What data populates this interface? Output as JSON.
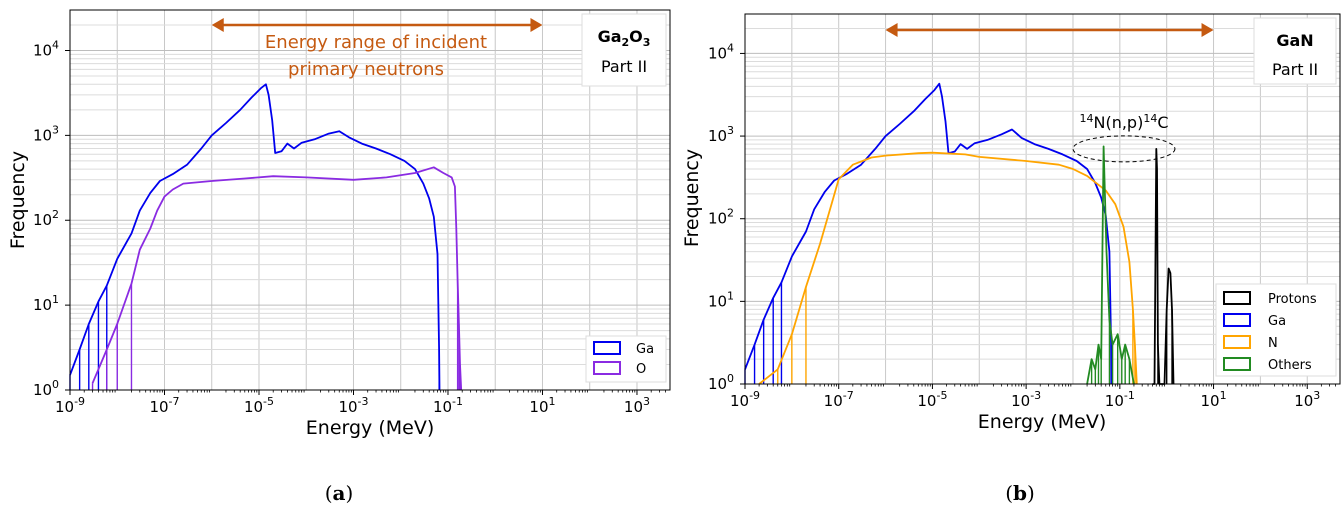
{
  "chart_data": [
    {
      "id": "a",
      "type": "line",
      "xlabel": "Energy (MeV)",
      "ylabel": "Frequency",
      "xscale": "log",
      "yscale": "log",
      "xlim": [
        1e-09,
        5000
      ],
      "ylim": [
        1,
        30000
      ],
      "grid": true,
      "xticks": [
        1e-09,
        1e-07,
        1e-05,
        0.001,
        0.1,
        10,
        1000
      ],
      "xtick_exps": [
        "-9",
        "-7",
        "-5",
        "-3",
        "-1",
        "1",
        "3"
      ],
      "yticks": [
        1,
        10,
        100,
        1000,
        10000
      ],
      "ytick_exps": [
        "0",
        "1",
        "2",
        "3",
        "4"
      ],
      "caption": "(a)",
      "caption_letter": "a",
      "material_base": "Ga",
      "material_sub1": "2",
      "material_mid": "O",
      "material_sub2": "3",
      "part": "Part II",
      "range_annotation": {
        "x": [
          1e-06,
          10
        ],
        "line1": "Energy range of incident",
        "line2": "primary neutrons",
        "color": "#c55a11"
      },
      "legend": {
        "placement": "lower-right",
        "entries": [
          "Ga",
          "O"
        ]
      },
      "series": [
        {
          "name": "Ga",
          "color": "#0000ee",
          "points": [
            [
              1e-09,
              1.5
            ],
            [
              1.6e-09,
              3
            ],
            [
              2.5e-09,
              6
            ],
            [
              4e-09,
              11
            ],
            [
              6e-09,
              17
            ],
            [
              1e-08,
              35
            ],
            [
              2e-08,
              70
            ],
            [
              3e-08,
              130
            ],
            [
              5e-08,
              210
            ],
            [
              8e-08,
              290
            ],
            [
              1.5e-07,
              350
            ],
            [
              3e-07,
              450
            ],
            [
              6e-07,
              700
            ],
            [
              1e-06,
              1000
            ],
            [
              2e-06,
              1400
            ],
            [
              4e-06,
              2000
            ],
            [
              7e-06,
              2800
            ],
            [
              1.1e-05,
              3600
            ],
            [
              1.4e-05,
              4000
            ],
            [
              1.6e-05,
              3000
            ],
            [
              1.9e-05,
              1500
            ],
            [
              2.2e-05,
              620
            ],
            [
              3e-05,
              650
            ],
            [
              4e-05,
              800
            ],
            [
              5.5e-05,
              700
            ],
            [
              8e-05,
              820
            ],
            [
              0.00015,
              900
            ],
            [
              0.0003,
              1050
            ],
            [
              0.0005,
              1120
            ],
            [
              0.0008,
              950
            ],
            [
              0.0015,
              800
            ],
            [
              0.003,
              700
            ],
            [
              0.006,
              600
            ],
            [
              0.012,
              500
            ],
            [
              0.02,
              400
            ],
            [
              0.03,
              270
            ],
            [
              0.04,
              180
            ],
            [
              0.05,
              110
            ],
            [
              0.06,
              40
            ],
            [
              0.065,
              3
            ],
            [
              0.066,
              1
            ]
          ]
        },
        {
          "name": "O",
          "color": "#8a2be2",
          "points": [
            [
              3e-09,
              1.2
            ],
            [
              6e-09,
              3
            ],
            [
              1e-08,
              6
            ],
            [
              2e-08,
              18
            ],
            [
              3e-08,
              45
            ],
            [
              5e-08,
              80
            ],
            [
              7e-08,
              130
            ],
            [
              1e-07,
              190
            ],
            [
              1.5e-07,
              230
            ],
            [
              2.5e-07,
              270
            ],
            [
              1e-06,
              290
            ],
            [
              5e-06,
              310
            ],
            [
              2e-05,
              330
            ],
            [
              0.0001,
              320
            ],
            [
              0.001,
              300
            ],
            [
              0.005,
              320
            ],
            [
              0.02,
              360
            ],
            [
              0.05,
              420
            ],
            [
              0.08,
              360
            ],
            [
              0.12,
              320
            ],
            [
              0.14,
              250
            ],
            [
              0.15,
              80
            ],
            [
              0.16,
              20
            ],
            [
              0.17,
              6
            ],
            [
              0.18,
              2
            ],
            [
              0.19,
              1
            ]
          ]
        }
      ]
    },
    {
      "id": "b",
      "type": "line",
      "xlabel": "Energy (MeV)",
      "ylabel": "Frequency",
      "xscale": "log",
      "yscale": "log",
      "xlim": [
        1e-09,
        5000
      ],
      "ylim": [
        1,
        30000
      ],
      "grid": true,
      "xticks": [
        1e-09,
        1e-07,
        1e-05,
        0.001,
        0.1,
        10,
        1000
      ],
      "xtick_exps": [
        "-9",
        "-7",
        "-5",
        "-3",
        "-1",
        "1",
        "3"
      ],
      "yticks": [
        1,
        10,
        100,
        1000,
        10000
      ],
      "ytick_exps": [
        "0",
        "1",
        "2",
        "3",
        "4"
      ],
      "caption": "(b)",
      "caption_letter": "b",
      "material": "GaN",
      "part": "Part II",
      "range_annotation": {
        "x": [
          1e-06,
          10
        ],
        "color": "#c55a11"
      },
      "reaction_annotation": {
        "pre": "14",
        "n1": "N(n,p)",
        "post": "14",
        "n2": "C",
        "ellipse_x": [
          0.01,
          1.5
        ],
        "ellipse_y": 700
      },
      "legend": {
        "placement": "center-right",
        "entries": [
          "Protons",
          "Ga",
          "N",
          "Others"
        ]
      },
      "series": [
        {
          "name": "Protons",
          "color": "#000000",
          "points": [
            [
              0.5,
              1
            ],
            [
              0.55,
              1
            ],
            [
              0.6,
              700
            ],
            [
              0.62,
              400
            ],
            [
              0.65,
              3
            ],
            [
              0.7,
              1
            ],
            [
              0.9,
              1
            ],
            [
              1.0,
              8
            ],
            [
              1.1,
              25
            ],
            [
              1.2,
              22
            ],
            [
              1.3,
              8
            ],
            [
              1.4,
              1
            ]
          ]
        },
        {
          "name": "Ga",
          "color": "#0000ee",
          "points": [
            [
              1e-09,
              1.5
            ],
            [
              1.6e-09,
              3
            ],
            [
              2.5e-09,
              6
            ],
            [
              4e-09,
              11
            ],
            [
              6e-09,
              17
            ],
            [
              1e-08,
              35
            ],
            [
              2e-08,
              70
            ],
            [
              3e-08,
              130
            ],
            [
              5e-08,
              210
            ],
            [
              8e-08,
              290
            ],
            [
              1.5e-07,
              350
            ],
            [
              3e-07,
              450
            ],
            [
              6e-07,
              700
            ],
            [
              1e-06,
              1000
            ],
            [
              2e-06,
              1400
            ],
            [
              4e-06,
              2000
            ],
            [
              7e-06,
              2800
            ],
            [
              1.1e-05,
              3600
            ],
            [
              1.4e-05,
              4300
            ],
            [
              1.6e-05,
              3000
            ],
            [
              1.9e-05,
              1500
            ],
            [
              2.2e-05,
              620
            ],
            [
              3e-05,
              650
            ],
            [
              4e-05,
              800
            ],
            [
              5.5e-05,
              700
            ],
            [
              8e-05,
              820
            ],
            [
              0.00015,
              900
            ],
            [
              0.0003,
              1050
            ],
            [
              0.0005,
              1200
            ],
            [
              0.0008,
              950
            ],
            [
              0.0015,
              800
            ],
            [
              0.003,
              700
            ],
            [
              0.006,
              600
            ],
            [
              0.012,
              500
            ],
            [
              0.02,
              400
            ],
            [
              0.03,
              270
            ],
            [
              0.04,
              180
            ],
            [
              0.05,
              110
            ],
            [
              0.06,
              40
            ],
            [
              0.065,
              3
            ],
            [
              0.066,
              1
            ]
          ]
        },
        {
          "name": "N",
          "color": "#ffa500",
          "points": [
            [
              2e-09,
              1
            ],
            [
              5e-09,
              1.5
            ],
            [
              1e-08,
              4
            ],
            [
              2e-08,
              15
            ],
            [
              4e-08,
              50
            ],
            [
              7e-08,
              150
            ],
            [
              1e-07,
              300
            ],
            [
              2e-07,
              450
            ],
            [
              5e-07,
              550
            ],
            [
              1e-06,
              580
            ],
            [
              5e-06,
              620
            ],
            [
              1e-05,
              630
            ],
            [
              5e-05,
              600
            ],
            [
              0.0001,
              560
            ],
            [
              0.001,
              500
            ],
            [
              0.005,
              450
            ],
            [
              0.01,
              400
            ],
            [
              0.02,
              330
            ],
            [
              0.05,
              220
            ],
            [
              0.08,
              150
            ],
            [
              0.12,
              80
            ],
            [
              0.16,
              30
            ],
            [
              0.19,
              8
            ],
            [
              0.21,
              3
            ],
            [
              0.23,
              1
            ]
          ]
        },
        {
          "name": "Others",
          "color": "#228b22",
          "points": [
            [
              0.02,
              1
            ],
            [
              0.025,
              2
            ],
            [
              0.03,
              1.5
            ],
            [
              0.035,
              3
            ],
            [
              0.04,
              2
            ],
            [
              0.045,
              750
            ],
            [
              0.048,
              200
            ],
            [
              0.052,
              40
            ],
            [
              0.06,
              6
            ],
            [
              0.07,
              3
            ],
            [
              0.09,
              4
            ],
            [
              0.11,
              2
            ],
            [
              0.13,
              3
            ],
            [
              0.16,
              2
            ],
            [
              0.2,
              1
            ]
          ]
        }
      ]
    }
  ]
}
